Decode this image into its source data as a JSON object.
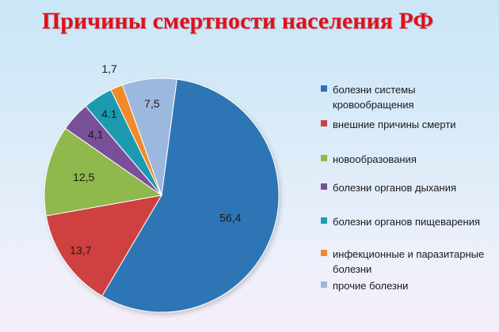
{
  "colors": {
    "title": "#e0101a",
    "label": "#1a1a1a"
  },
  "chart_data": {
    "type": "pie",
    "title": "Причины смертности населения РФ",
    "slices": [
      {
        "name": "болезни системы кровообращения",
        "value": 56.4,
        "label": "56,4",
        "color": "#2e74b5"
      },
      {
        "name": "внешние причины смерти",
        "value": 13.7,
        "label": "13,7",
        "color": "#cf4141"
      },
      {
        "name": "новообразования",
        "value": 12.5,
        "label": "12,5",
        "color": "#8fb84d"
      },
      {
        "name": "болезни органов дыхания",
        "value": 4.1,
        "label": "4,1",
        "color": "#7a4f9a"
      },
      {
        "name": "болезни органов пищеварения",
        "value": 4.1,
        "label": "4.1",
        "color": "#1e9bb0"
      },
      {
        "name": "инфекционные и паразитарные болезни",
        "value": 1.7,
        "label": "1,7",
        "color": "#f08a2a"
      },
      {
        "name": "прочие болезни",
        "value": 7.5,
        "label": "7,5",
        "color": "#9db8df"
      }
    ],
    "legend": {
      "position": "right",
      "entries": [
        "болезни системы кровообращения",
        "внешние причины смерти",
        "новообразования",
        "болезни органов дыхания",
        "болезни органов пищеварения",
        "инфекционные и паразитарные болезни",
        "прочие болезни"
      ]
    }
  }
}
